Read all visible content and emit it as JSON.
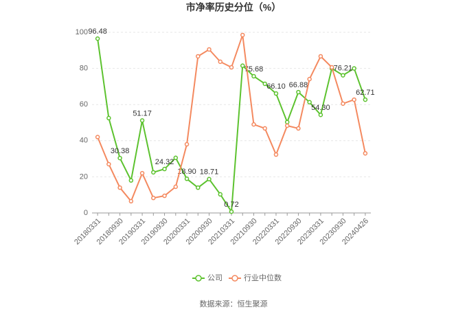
{
  "chart_data": {
    "type": "line",
    "title": "市净率历史分位（%）",
    "categories": [
      "20180331",
      null,
      "20180930",
      null,
      "20190331",
      null,
      "20190930",
      null,
      "20200331",
      null,
      "20200930",
      null,
      "20210331",
      null,
      "20210930",
      null,
      "20220331",
      null,
      "20220930",
      null,
      "20230331",
      null,
      "20230930",
      null,
      "20240426"
    ],
    "series": [
      {
        "name": "公司",
        "color": "#5cc22e",
        "values": [
          96.48,
          52.5,
          30.38,
          18,
          51.17,
          22.5,
          24.32,
          30.5,
          18.9,
          14,
          18.71,
          10.3,
          0.72,
          81.5,
          75.68,
          71.5,
          66.1,
          50.3,
          66.88,
          61.3,
          54.3,
          80,
          76.21,
          80,
          62.71
        ],
        "value_labels": [
          "96.48",
          null,
          "30.38",
          null,
          "51.17",
          null,
          "24.32",
          null,
          "18.90",
          null,
          "18.71",
          null,
          "0.72",
          null,
          "75.68",
          null,
          "66.10",
          null,
          "66.88",
          null,
          "54.30",
          null,
          "76.21",
          null,
          "62.71"
        ]
      },
      {
        "name": "行业中位数",
        "color": "#f4895f",
        "values": [
          42,
          27,
          14,
          6.5,
          22,
          8.3,
          9.5,
          14.5,
          38,
          86.7,
          90.5,
          83.7,
          80.6,
          98.5,
          49,
          46.8,
          32.3,
          48.3,
          46.8,
          74.1,
          86.7,
          80.6,
          60.5,
          62.7,
          33
        ]
      }
    ],
    "ylim": [
      0,
      100
    ],
    "yticks": [
      0,
      20,
      40,
      60,
      80,
      100
    ],
    "grid": true,
    "source": "数据来源：恒生聚源"
  }
}
